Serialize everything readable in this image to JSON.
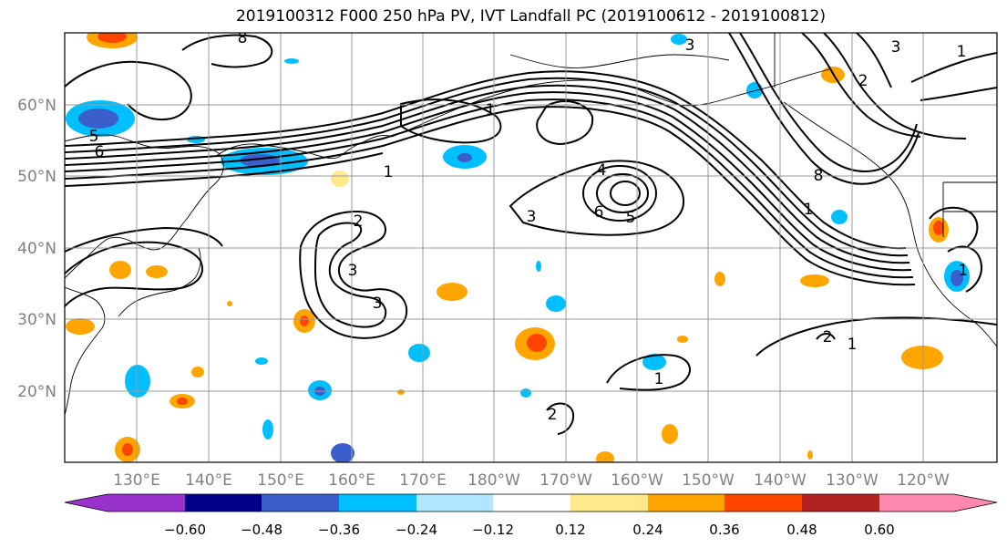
{
  "title": "2019100312 F000 250 hPa PV, IVT Landfall PC (2019100612 - 2019100812)",
  "map": {
    "lon_labels": [
      "130°E",
      "140°E",
      "150°E",
      "160°E",
      "170°E",
      "180°W",
      "170°W",
      "160°W",
      "150°W",
      "140°W",
      "130°W",
      "120°W"
    ],
    "lat_labels": [
      "60°N",
      "50°N",
      "40°N",
      "30°N",
      "20°N"
    ],
    "label_color": "#808080",
    "grid_color": "#9a9a9a"
  },
  "contour_labels": [
    "8",
    "3",
    "3",
    "1",
    "5",
    "6",
    "1",
    "1",
    "4",
    "6",
    "5",
    "2",
    "3",
    "3",
    "2",
    "1",
    "1",
    "3",
    "8",
    "2",
    "1",
    "2",
    "1"
  ],
  "colorbar": {
    "colors": [
      "#9932CC",
      "#00008B",
      "#3A5FCD",
      "#00BFFF",
      "#B2E5FF",
      "#FFFFFF",
      "#FFFFFF",
      "#FFE98A",
      "#FFA500",
      "#FF4500",
      "#B22222",
      "#FF88B0"
    ],
    "tick_labels": [
      "−0.60",
      "−0.48",
      "−0.36",
      "−0.24",
      "−0.12",
      "0.12",
      "0.24",
      "0.36",
      "0.48",
      "0.60"
    ]
  }
}
